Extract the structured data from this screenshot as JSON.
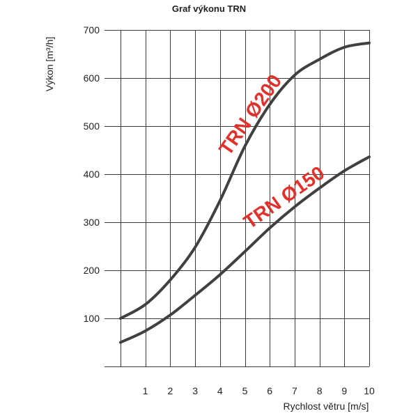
{
  "chart_data": {
    "type": "line",
    "title": "Graf výkonu TRN",
    "xlabel": "Rychlost větru [m/s]",
    "ylabel": "Výkon [m³/h]",
    "x": [
      0,
      1,
      2,
      3,
      4,
      5,
      6,
      7,
      8,
      9,
      10
    ],
    "x_ticks": [
      1,
      2,
      3,
      4,
      5,
      6,
      7,
      8,
      9,
      10
    ],
    "y_ticks": [
      100,
      200,
      300,
      400,
      500,
      600,
      700
    ],
    "xlim": [
      0,
      10
    ],
    "ylim": [
      0,
      700
    ],
    "grid": true,
    "legend": "none",
    "series": [
      {
        "name": "TRN Ø200",
        "values": [
          100,
          129,
          180,
          248,
          345,
          458,
          545,
          606,
          639,
          664,
          673
        ],
        "line_color": "#404040",
        "label_color": "#e0322c"
      },
      {
        "name": "TRN Ø150",
        "values": [
          50,
          74,
          107,
          148,
          191,
          239,
          288,
          332,
          371,
          407,
          436
        ],
        "line_color": "#404040",
        "label_color": "#e0322c"
      }
    ]
  }
}
